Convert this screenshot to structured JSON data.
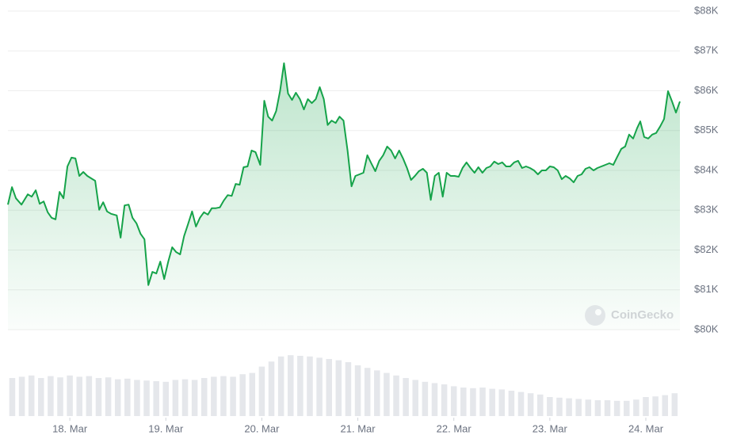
{
  "chart_data": [
    {
      "type": "area",
      "x": [
        17.355,
        17.397,
        17.438,
        17.496,
        17.562,
        17.603,
        17.645,
        17.686,
        17.727,
        17.769,
        17.81,
        17.851,
        17.893,
        17.934,
        17.975,
        18.017,
        18.058,
        18.099,
        18.14,
        18.182,
        18.223,
        18.264,
        18.306,
        18.347,
        18.388,
        18.43,
        18.488,
        18.529,
        18.57,
        18.612,
        18.653,
        18.694,
        18.736,
        18.777,
        18.818,
        18.86,
        18.901,
        18.942,
        18.983,
        19.025,
        19.066,
        19.107,
        19.149,
        19.19,
        19.231,
        19.273,
        19.314,
        19.355,
        19.397,
        19.438,
        19.479,
        19.521,
        19.562,
        19.603,
        19.645,
        19.686,
        19.727,
        19.769,
        19.81,
        19.851,
        19.893,
        19.934,
        19.983,
        20.025,
        20.066,
        20.107,
        20.149,
        20.19,
        20.231,
        20.273,
        20.314,
        20.355,
        20.397,
        20.438,
        20.479,
        20.521,
        20.562,
        20.603,
        20.645,
        20.686,
        20.727,
        20.769,
        20.81,
        20.851,
        20.893,
        20.934,
        20.975,
        21.017,
        21.058,
        21.099,
        21.14,
        21.182,
        21.223,
        21.264,
        21.306,
        21.347,
        21.388,
        21.43,
        21.471,
        21.512,
        21.554,
        21.595,
        21.636,
        21.678,
        21.719,
        21.76,
        21.802,
        21.843,
        21.884,
        21.926,
        21.967,
        22.008,
        22.05,
        22.091,
        22.132,
        22.174,
        22.215,
        22.256,
        22.298,
        22.339,
        22.38,
        22.421,
        22.463,
        22.504,
        22.545,
        22.587,
        22.628,
        22.669,
        22.711,
        22.752,
        22.793,
        22.835,
        22.876,
        22.917,
        22.958,
        23.0,
        23.041,
        23.082,
        23.124,
        23.165,
        23.207,
        23.248,
        23.289,
        23.331,
        23.372,
        23.413,
        23.455,
        23.496,
        23.537,
        23.579,
        23.62,
        23.661,
        23.702,
        23.744,
        23.785,
        23.826,
        23.868,
        23.909,
        23.942,
        23.983,
        24.025,
        24.066,
        24.107,
        24.149,
        24.19,
        24.231,
        24.273,
        24.314,
        24.355
      ],
      "values": [
        83140,
        83580,
        83300,
        83140,
        83400,
        83340,
        83500,
        83160,
        83220,
        82950,
        82810,
        82770,
        83460,
        83300,
        84100,
        84320,
        84300,
        83860,
        83960,
        83860,
        83800,
        83740,
        83010,
        83200,
        82970,
        82910,
        82870,
        82310,
        83120,
        83140,
        82810,
        82670,
        82410,
        82270,
        81120,
        81450,
        81410,
        81710,
        81270,
        81710,
        82070,
        81950,
        81890,
        82350,
        82650,
        82970,
        82590,
        82810,
        82950,
        82890,
        83050,
        83050,
        83070,
        83240,
        83380,
        83360,
        83660,
        83640,
        84080,
        84100,
        84500,
        84460,
        84140,
        85750,
        85350,
        85250,
        85490,
        85990,
        86690,
        85930,
        85770,
        85950,
        85790,
        85530,
        85790,
        85690,
        85790,
        86090,
        85790,
        85140,
        85250,
        85190,
        85350,
        85250,
        84500,
        83600,
        83860,
        83900,
        83940,
        84380,
        84180,
        83980,
        84240,
        84380,
        84600,
        84500,
        84300,
        84500,
        84300,
        84060,
        83760,
        83860,
        83980,
        84040,
        83940,
        83260,
        83860,
        83940,
        83340,
        83940,
        83860,
        83860,
        83840,
        84060,
        84200,
        84060,
        83940,
        84080,
        83940,
        84060,
        84100,
        84220,
        84160,
        84200,
        84100,
        84100,
        84200,
        84240,
        84060,
        84100,
        84060,
        84000,
        83900,
        84000,
        84000,
        84100,
        84080,
        84000,
        83780,
        83860,
        83800,
        83700,
        83860,
        83900,
        84040,
        84080,
        84000,
        84060,
        84100,
        84140,
        84180,
        84140,
        84340,
        84540,
        84600,
        84900,
        84800,
        85060,
        85230,
        84840,
        84800,
        84900,
        84940,
        85100,
        85290,
        85990,
        85730,
        85450,
        85730
      ],
      "color": "#16a34a",
      "xlim": [
        17.355,
        24.355
      ],
      "xticks": [
        {
          "value": 18,
          "label": "18. Mar"
        },
        {
          "value": 19,
          "label": "19. Mar"
        },
        {
          "value": 20,
          "label": "20. Mar"
        },
        {
          "value": 21,
          "label": "21. Mar"
        },
        {
          "value": 22,
          "label": "22. Mar"
        },
        {
          "value": 23,
          "label": "23. Mar"
        },
        {
          "value": 24,
          "label": "24. Mar"
        }
      ],
      "ylim": [
        80000,
        88000
      ],
      "yticks": [
        {
          "value": 80000,
          "label": "$80K"
        },
        {
          "value": 81000,
          "label": "$81K"
        },
        {
          "value": 82000,
          "label": "$82K"
        },
        {
          "value": 83000,
          "label": "$83K"
        },
        {
          "value": 84000,
          "label": "$84K"
        },
        {
          "value": 85000,
          "label": "$85K"
        },
        {
          "value": 86000,
          "label": "$86K"
        },
        {
          "value": 87000,
          "label": "$87K"
        },
        {
          "value": 88000,
          "label": "$88K"
        }
      ],
      "grid": true,
      "watermark": "CoinGecko"
    },
    {
      "type": "bar",
      "x": [
        17.4,
        17.5,
        17.6,
        17.7,
        17.8,
        17.9,
        18.0,
        18.1,
        18.2,
        18.3,
        18.4,
        18.5,
        18.6,
        18.7,
        18.8,
        18.9,
        19.0,
        19.1,
        19.2,
        19.3,
        19.4,
        19.5,
        19.6,
        19.7,
        19.8,
        19.9,
        20.0,
        20.1,
        20.2,
        20.3,
        20.4,
        20.5,
        20.6,
        20.7,
        20.8,
        20.9,
        21.0,
        21.1,
        21.2,
        21.3,
        21.4,
        21.5,
        21.6,
        21.7,
        21.8,
        21.9,
        22.0,
        22.1,
        22.2,
        22.3,
        22.4,
        22.5,
        22.6,
        22.7,
        22.8,
        22.9,
        23.0,
        23.1,
        23.2,
        23.3,
        23.4,
        23.5,
        23.6,
        23.7,
        23.8,
        23.9,
        24.0,
        24.1,
        24.2,
        24.3
      ],
      "values": [
        60,
        62,
        64,
        60,
        63,
        61,
        64,
        62,
        63,
        60,
        61,
        58,
        59,
        57,
        56,
        55,
        54,
        57,
        58,
        57,
        60,
        62,
        63,
        62,
        66,
        68,
        78,
        86,
        94,
        96,
        95,
        94,
        92,
        90,
        88,
        85,
        80,
        76,
        72,
        68,
        64,
        60,
        57,
        54,
        52,
        50,
        47,
        45,
        44,
        45,
        43,
        42,
        40,
        38,
        36,
        34,
        30,
        29,
        28,
        27,
        26,
        25,
        25,
        24,
        24,
        26,
        30,
        31,
        33,
        36
      ],
      "color": "#e5e7eb",
      "xlim": [
        17.355,
        24.355
      ],
      "ylim": [
        0,
        100
      ]
    }
  ]
}
